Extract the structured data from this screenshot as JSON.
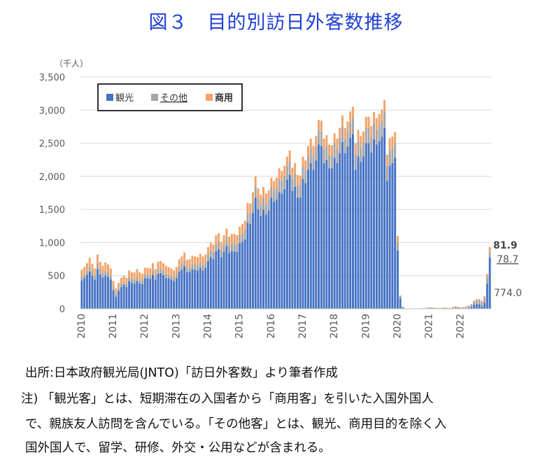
{
  "title": "図３　目的別訪日外客数推移",
  "source": "出所:日本政府観光局(JNTO)「訪日外客数」より筆者作成",
  "note_lines": [
    "注) 「観光客」とは、短期滞在の入国者から「商用客」を引いた入国外国人",
    "で、親族友人訪問を含んでいる。「その他客」とは、観光、商用目的を除く入",
    "国外国人で、留学、研修、外交・公用などが含まれる。"
  ],
  "chart_data": {
    "type": "bar",
    "stacked": true,
    "unit": "（千人）",
    "ylim": [
      0,
      3500
    ],
    "yticks": [
      0,
      500,
      1000,
      1500,
      2000,
      2500,
      3000,
      3500
    ],
    "ytick_labels": [
      "0",
      "500",
      "1,000",
      "1,500",
      "2,000",
      "2,500",
      "3,000",
      "3,500"
    ],
    "x_tick_labels": [
      "2010",
      "2011",
      "2012",
      "2013",
      "2014",
      "2015",
      "2016",
      "2017",
      "2018",
      "2019",
      "2020",
      "2021",
      "2022"
    ],
    "months_per_year": 12,
    "grid": true,
    "legend": {
      "position": "top-left",
      "entries": [
        "観光",
        "その他",
        "商用"
      ]
    },
    "colors": {
      "sightseeing": "#4472c4",
      "other": "#a5a5a5",
      "business": "#f4a268"
    },
    "series": [
      {
        "name": "観光",
        "key": "sightseeing",
        "values": [
          430,
          460,
          510,
          560,
          500,
          440,
          600,
          520,
          470,
          500,
          480,
          440,
          280,
          180,
          270,
          330,
          360,
          330,
          420,
          390,
          380,
          420,
          380,
          370,
          460,
          460,
          450,
          510,
          440,
          530,
          540,
          510,
          460,
          460,
          440,
          420,
          460,
          560,
          590,
          640,
          550,
          560,
          600,
          590,
          580,
          620,
          580,
          620,
          720,
          780,
          750,
          870,
          900,
          780,
          860,
          950,
          840,
          870,
          870,
          860,
          990,
          1010,
          1050,
          1300,
          1280,
          1450,
          1680,
          1500,
          1400,
          1500,
          1420,
          1480,
          1680,
          1620,
          1650,
          1760,
          1740,
          1810,
          1950,
          2020,
          1780,
          1840,
          1680,
          1680,
          1960,
          1900,
          2100,
          2200,
          2100,
          2240,
          2480,
          2460,
          2200,
          2250,
          2120,
          2120,
          2280,
          2200,
          2350,
          2520,
          2350,
          2450,
          2580,
          2640,
          2100,
          2300,
          2220,
          2300,
          2500,
          2500,
          2360,
          2560,
          2480,
          2530,
          2600,
          2730,
          1930,
          2160,
          2200,
          2280,
          880,
          160,
          15,
          1,
          1,
          1,
          1,
          1,
          1,
          1,
          1,
          1,
          2,
          4,
          2,
          1,
          1,
          1,
          3,
          1,
          1,
          1,
          2,
          1,
          1,
          2,
          8,
          14,
          25,
          60,
          70,
          70,
          40,
          90,
          380,
          774
        ]
      },
      {
        "name": "その他",
        "key": "other",
        "values": [
          60,
          60,
          70,
          80,
          70,
          60,
          90,
          80,
          70,
          70,
          70,
          60,
          50,
          50,
          40,
          50,
          50,
          50,
          60,
          60,
          60,
          60,
          60,
          60,
          60,
          60,
          60,
          70,
          60,
          70,
          70,
          70,
          70,
          60,
          60,
          60,
          60,
          70,
          80,
          80,
          70,
          70,
          80,
          80,
          80,
          80,
          80,
          80,
          90,
          100,
          100,
          110,
          110,
          110,
          120,
          130,
          120,
          120,
          120,
          120,
          120,
          130,
          140,
          150,
          160,
          170,
          170,
          170,
          170,
          180,
          170,
          170,
          160,
          170,
          180,
          200,
          190,
          200,
          200,
          210,
          190,
          200,
          190,
          190,
          190,
          190,
          200,
          210,
          200,
          210,
          210,
          220,
          210,
          210,
          200,
          200,
          220,
          210,
          220,
          230,
          220,
          220,
          230,
          240,
          230,
          230,
          220,
          220,
          230,
          230,
          230,
          240,
          230,
          240,
          240,
          250,
          230,
          240,
          230,
          230,
          120,
          30,
          12,
          2,
          1,
          2,
          3,
          3,
          2,
          5,
          8,
          12,
          15,
          12,
          12,
          10,
          10,
          12,
          14,
          10,
          10,
          20,
          30,
          25,
          15,
          20,
          25,
          30,
          40,
          50,
          60,
          60,
          60,
          70,
          90,
          79
        ]
      },
      {
        "name": "商用",
        "key": "business",
        "values": [
          100,
          110,
          110,
          130,
          110,
          110,
          130,
          110,
          110,
          130,
          120,
          110,
          90,
          80,
          80,
          90,
          90,
          90,
          100,
          100,
          110,
          120,
          110,
          100,
          100,
          100,
          100,
          110,
          100,
          110,
          110,
          110,
          120,
          110,
          110,
          100,
          110,
          120,
          120,
          130,
          120,
          120,
          120,
          120,
          120,
          130,
          130,
          120,
          120,
          120,
          120,
          130,
          130,
          120,
          130,
          130,
          130,
          140,
          140,
          130,
          130,
          140,
          140,
          150,
          150,
          140,
          150,
          150,
          150,
          160,
          150,
          140,
          140,
          140,
          150,
          160,
          150,
          150,
          150,
          160,
          160,
          160,
          150,
          140,
          150,
          150,
          160,
          160,
          160,
          160,
          160,
          160,
          160,
          160,
          160,
          150,
          150,
          160,
          160,
          170,
          160,
          160,
          170,
          170,
          170,
          170,
          170,
          160,
          170,
          170,
          170,
          170,
          170,
          170,
          170,
          170,
          170,
          180,
          170,
          160,
          100,
          10,
          3,
          1,
          1,
          1,
          1,
          1,
          1,
          1,
          2,
          2,
          4,
          4,
          3,
          1,
          1,
          2,
          3,
          2,
          2,
          4,
          6,
          5,
          2,
          3,
          3,
          5,
          8,
          12,
          15,
          15,
          20,
          30,
          55,
          82
        ]
      }
    ],
    "annotations": [
      {
        "text": "81.9",
        "series": "商用"
      },
      {
        "text": "78.7",
        "series": "その他"
      },
      {
        "text": "774.0",
        "series": "観光"
      }
    ]
  }
}
